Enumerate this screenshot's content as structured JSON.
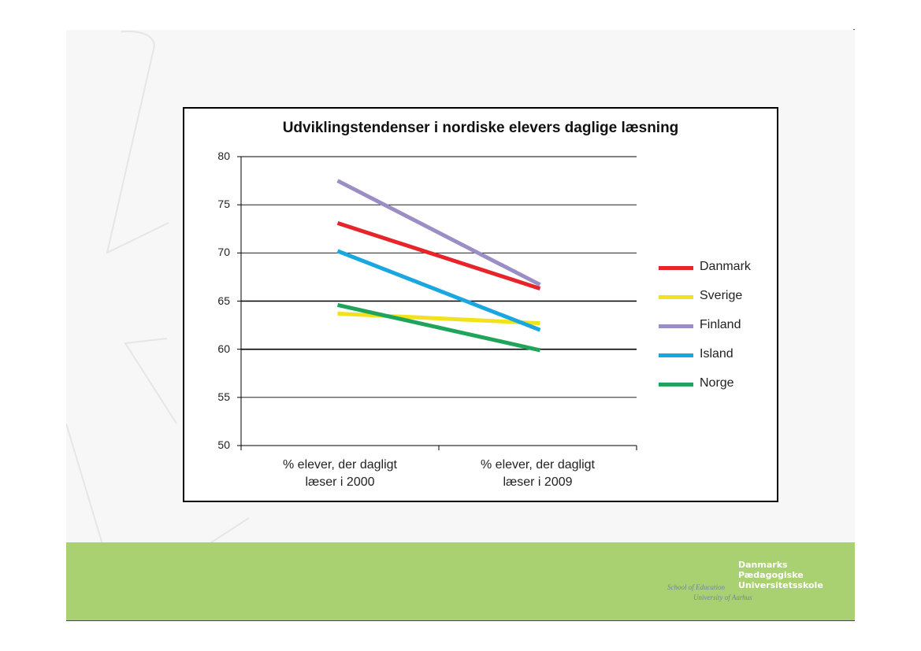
{
  "slide": {
    "background": "#f7f7f7",
    "footer_color": "#a9d071"
  },
  "logo": {
    "line1": "Danmarks",
    "line2": "Pædagogiske",
    "line3": "Universitetsskole",
    "sub1": "School of Education",
    "sub2": "University of Aarhus"
  },
  "chart_data": {
    "type": "line",
    "title": "Udviklingstendenser i nordiske elevers daglige læsning",
    "categories": [
      "% elever, der dagligt læser i 2000",
      "% elever, der dagligt læser i 2009"
    ],
    "category_lines": [
      [
        "% elever, der dagligt",
        "læser i 2000"
      ],
      [
        "% elever, der dagligt",
        "læser i 2009"
      ]
    ],
    "ylim": [
      50,
      80
    ],
    "yticks": [
      "80",
      "75",
      "70",
      "65",
      "60",
      "55",
      "50"
    ],
    "grid": true,
    "legend_position": "right",
    "series": [
      {
        "name": "Danmark",
        "color": "#e8242b",
        "values": [
          73.1,
          66.3
        ]
      },
      {
        "name": "Sverige",
        "color": "#f2e21b",
        "values": [
          63.7,
          62.7
        ]
      },
      {
        "name": "Finland",
        "color": "#9b8ec4",
        "values": [
          77.5,
          66.7
        ]
      },
      {
        "name": "Island",
        "color": "#1aa7e0",
        "values": [
          70.2,
          62.0
        ]
      },
      {
        "name": "Norge",
        "color": "#1fa55a",
        "values": [
          64.6,
          59.9
        ]
      }
    ]
  }
}
